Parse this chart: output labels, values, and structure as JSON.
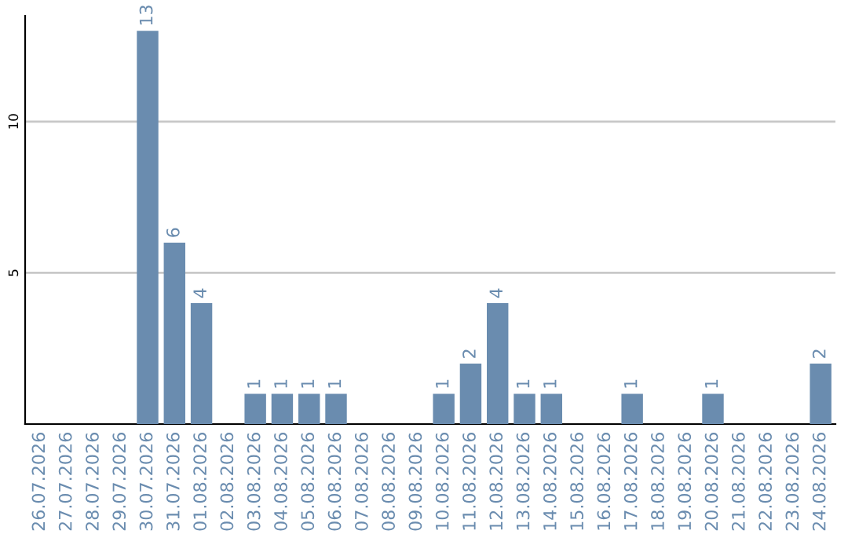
{
  "chart_data": {
    "type": "bar",
    "categories": [
      "26.07.2026",
      "27.07.2026",
      "28.07.2026",
      "29.07.2026",
      "30.07.2026",
      "31.07.2026",
      "01.08.2026",
      "02.08.2026",
      "03.08.2026",
      "04.08.2026",
      "05.08.2026",
      "06.08.2026",
      "07.08.2026",
      "08.08.2026",
      "09.08.2026",
      "10.08.2026",
      "11.08.2026",
      "12.08.2026",
      "13.08.2026",
      "14.08.2026",
      "15.08.2026",
      "16.08.2026",
      "17.08.2026",
      "18.08.2026",
      "19.08.2026",
      "20.08.2026",
      "21.08.2026",
      "22.08.2026",
      "23.08.2026",
      "24.08.2026"
    ],
    "values": [
      0,
      0,
      0,
      0,
      13,
      6,
      4,
      0,
      1,
      1,
      1,
      1,
      0,
      0,
      0,
      1,
      2,
      4,
      1,
      1,
      0,
      0,
      1,
      0,
      0,
      1,
      0,
      0,
      0,
      2
    ],
    "value_labels": [
      null,
      null,
      null,
      null,
      "13",
      "6",
      "4",
      null,
      "1",
      "1",
      "1",
      "1",
      null,
      null,
      null,
      "1",
      "2",
      "4",
      "1",
      "1",
      null,
      null,
      "1",
      null,
      null,
      "1",
      null,
      null,
      null,
      "2"
    ],
    "color": "#6a8caf",
    "ylim": [
      0,
      13.5
    ],
    "yticks": [
      5,
      10
    ],
    "grid": "y",
    "legend": false
  }
}
